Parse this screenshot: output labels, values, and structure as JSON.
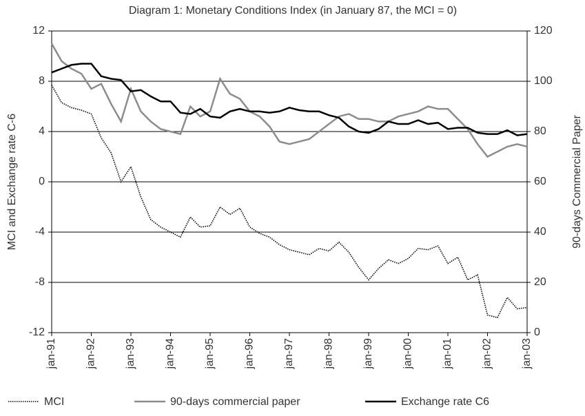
{
  "chart_data": {
    "type": "line",
    "title": "Diagram 1: Monetary Conditions Index (in January 87, the MCI = 0)",
    "ylabel": "MCI and Exchange rate C-6",
    "y2label": "90-days Commercial Paper",
    "categories": [
      "jan-91",
      null,
      null,
      null,
      "jan-92",
      null,
      null,
      null,
      "jan-93",
      null,
      null,
      null,
      "jan-94",
      null,
      null,
      null,
      "jan-95",
      null,
      null,
      null,
      "jan-96",
      null,
      null,
      null,
      "jan-97",
      null,
      null,
      null,
      "jan-98",
      null,
      null,
      null,
      "jan-99",
      null,
      null,
      null,
      "jan-00",
      null,
      null,
      null,
      "jan-01",
      null,
      null,
      null,
      "jan-02",
      null,
      null,
      null,
      "jan-03"
    ],
    "series": [
      {
        "name": "MCI",
        "color": "#000000",
        "dash": "dotted",
        "axis": "y",
        "values": [
          7.7,
          6.3,
          5.9,
          5.7,
          5.4,
          3.5,
          2.3,
          0.0,
          1.2,
          -1.2,
          -3.0,
          -3.6,
          -4.0,
          -4.4,
          -2.8,
          -3.6,
          -3.5,
          -2.0,
          -2.6,
          -2.1,
          -3.6,
          -4.1,
          -4.4,
          -5.0,
          -5.4,
          -5.6,
          -5.8,
          -5.3,
          -5.5,
          -4.8,
          -5.6,
          -6.8,
          -7.8,
          -6.9,
          -6.2,
          -6.5,
          -6.1,
          -5.3,
          -5.4,
          -5.1,
          -6.5,
          -6.0,
          -7.8,
          -7.4,
          -10.6,
          -10.8,
          -9.2,
          -10.1,
          -10.0
        ]
      },
      {
        "name": "90-days commercial paper",
        "color": "#8c8c8c",
        "dash": "solid",
        "axis": "y2",
        "values": [
          115,
          108,
          105,
          103,
          97,
          99,
          91,
          84,
          97,
          88,
          84,
          81,
          80,
          79,
          90,
          86,
          88,
          101,
          95,
          93,
          88,
          86,
          82,
          76,
          75,
          76,
          77,
          80,
          83,
          86,
          87,
          85,
          85,
          84,
          84,
          86,
          87,
          88,
          90,
          89,
          89,
          85,
          81,
          75,
          70,
          72,
          74,
          75,
          74
        ]
      },
      {
        "name": "Exchange rate C6",
        "color": "#000000",
        "dash": "solid",
        "axis": "y",
        "values": [
          8.7,
          9.0,
          9.3,
          9.4,
          9.4,
          8.4,
          8.2,
          8.1,
          7.2,
          7.3,
          6.8,
          6.4,
          6.4,
          5.5,
          5.4,
          5.8,
          5.2,
          5.1,
          5.6,
          5.8,
          5.6,
          5.6,
          5.5,
          5.6,
          5.9,
          5.7,
          5.6,
          5.6,
          5.3,
          5.1,
          4.4,
          4.0,
          3.9,
          4.2,
          4.8,
          4.6,
          4.6,
          4.9,
          4.6,
          4.7,
          4.2,
          4.3,
          4.3,
          3.9,
          3.8,
          3.8,
          4.1,
          3.7,
          3.8
        ]
      }
    ],
    "ylim": [
      -12,
      12
    ],
    "yticks": [
      -12,
      -8,
      -4,
      0,
      4,
      8,
      12
    ],
    "y2lim": [
      0,
      120
    ],
    "y2ticks": [
      0,
      20,
      40,
      60,
      80,
      100,
      120
    ],
    "grid": true,
    "legend": "bottom"
  }
}
